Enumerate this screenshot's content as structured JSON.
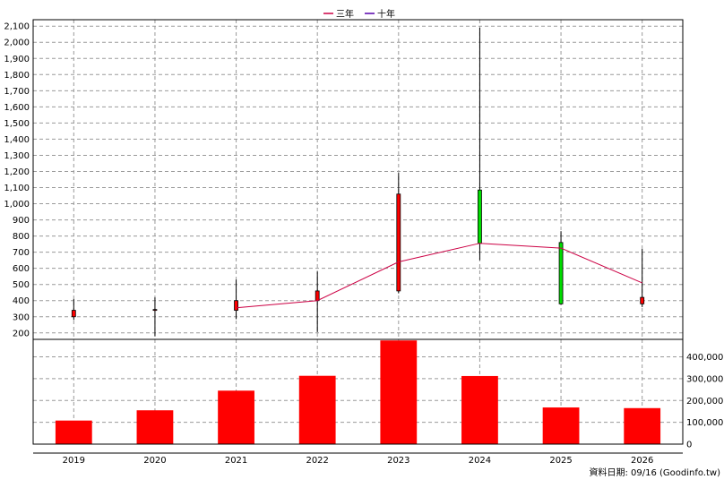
{
  "legend": {
    "items": [
      {
        "label": "三年",
        "color": "#cc0044"
      },
      {
        "label": "十年",
        "color": "#5500aa"
      }
    ]
  },
  "footer": {
    "source_text": "資料日期: 09/16  (Goodinfo.tw)"
  },
  "chart_data": [
    {
      "type": "candlestick",
      "title": "",
      "x": [
        "2019",
        "2020",
        "2021",
        "2022",
        "2023",
        "2024",
        "2025",
        "2026"
      ],
      "ohlc": [
        {
          "open": 300,
          "high": 410,
          "low": 280,
          "close": 340
        },
        {
          "open": 340,
          "high": 420,
          "low": 180,
          "close": 345
        },
        {
          "open": 340,
          "high": 530,
          "low": 285,
          "close": 400
        },
        {
          "open": 400,
          "high": 580,
          "low": 205,
          "close": 460
        },
        {
          "open": 460,
          "high": 1190,
          "low": 445,
          "close": 1060
        },
        {
          "open": 1085,
          "high": 2090,
          "low": 650,
          "close": 755
        },
        {
          "open": 760,
          "high": 830,
          "low": 375,
          "close": 380
        },
        {
          "open": 380,
          "high": 720,
          "low": 360,
          "close": 420
        }
      ],
      "candle_colors": {
        "up": "#ff0000",
        "down": "#00dd00"
      },
      "series": [
        {
          "name": "三年",
          "color": "#cc0044",
          "x": [
            "2021",
            "2022",
            "2023",
            "2024",
            "2025",
            "2026"
          ],
          "values": [
            355,
            400,
            640,
            755,
            725,
            510
          ]
        }
      ],
      "y_ticks": [
        200,
        300,
        400,
        500,
        600,
        700,
        800,
        900,
        1000,
        1100,
        1200,
        1300,
        1400,
        1500,
        1600,
        1700,
        1800,
        1900,
        2000,
        2100
      ],
      "y_tick_labels": [
        "200",
        "300",
        "400",
        "500",
        "600",
        "700",
        "800",
        "900",
        "1,000",
        "1,100",
        "1,200",
        "1,300",
        "1,400",
        "1,500",
        "1,600",
        "1,700",
        "1,800",
        "1,900",
        "2,000",
        "2,100"
      ],
      "ylim": [
        160,
        2140
      ],
      "grid": true,
      "legend_position": "top-center"
    },
    {
      "type": "bar",
      "title": "",
      "categories": [
        "2019",
        "2020",
        "2021",
        "2022",
        "2023",
        "2024",
        "2025",
        "2026"
      ],
      "values": [
        108000,
        155000,
        245000,
        313000,
        475000,
        312000,
        168000,
        165000
      ],
      "bar_color": "#ff0000",
      "y_ticks": [
        0,
        100000,
        200000,
        300000,
        400000
      ],
      "y_tick_labels": [
        "0",
        "100,000",
        "200,000",
        "300,000",
        "400,000"
      ],
      "ylim": [
        0,
        480000
      ],
      "grid": true
    }
  ]
}
